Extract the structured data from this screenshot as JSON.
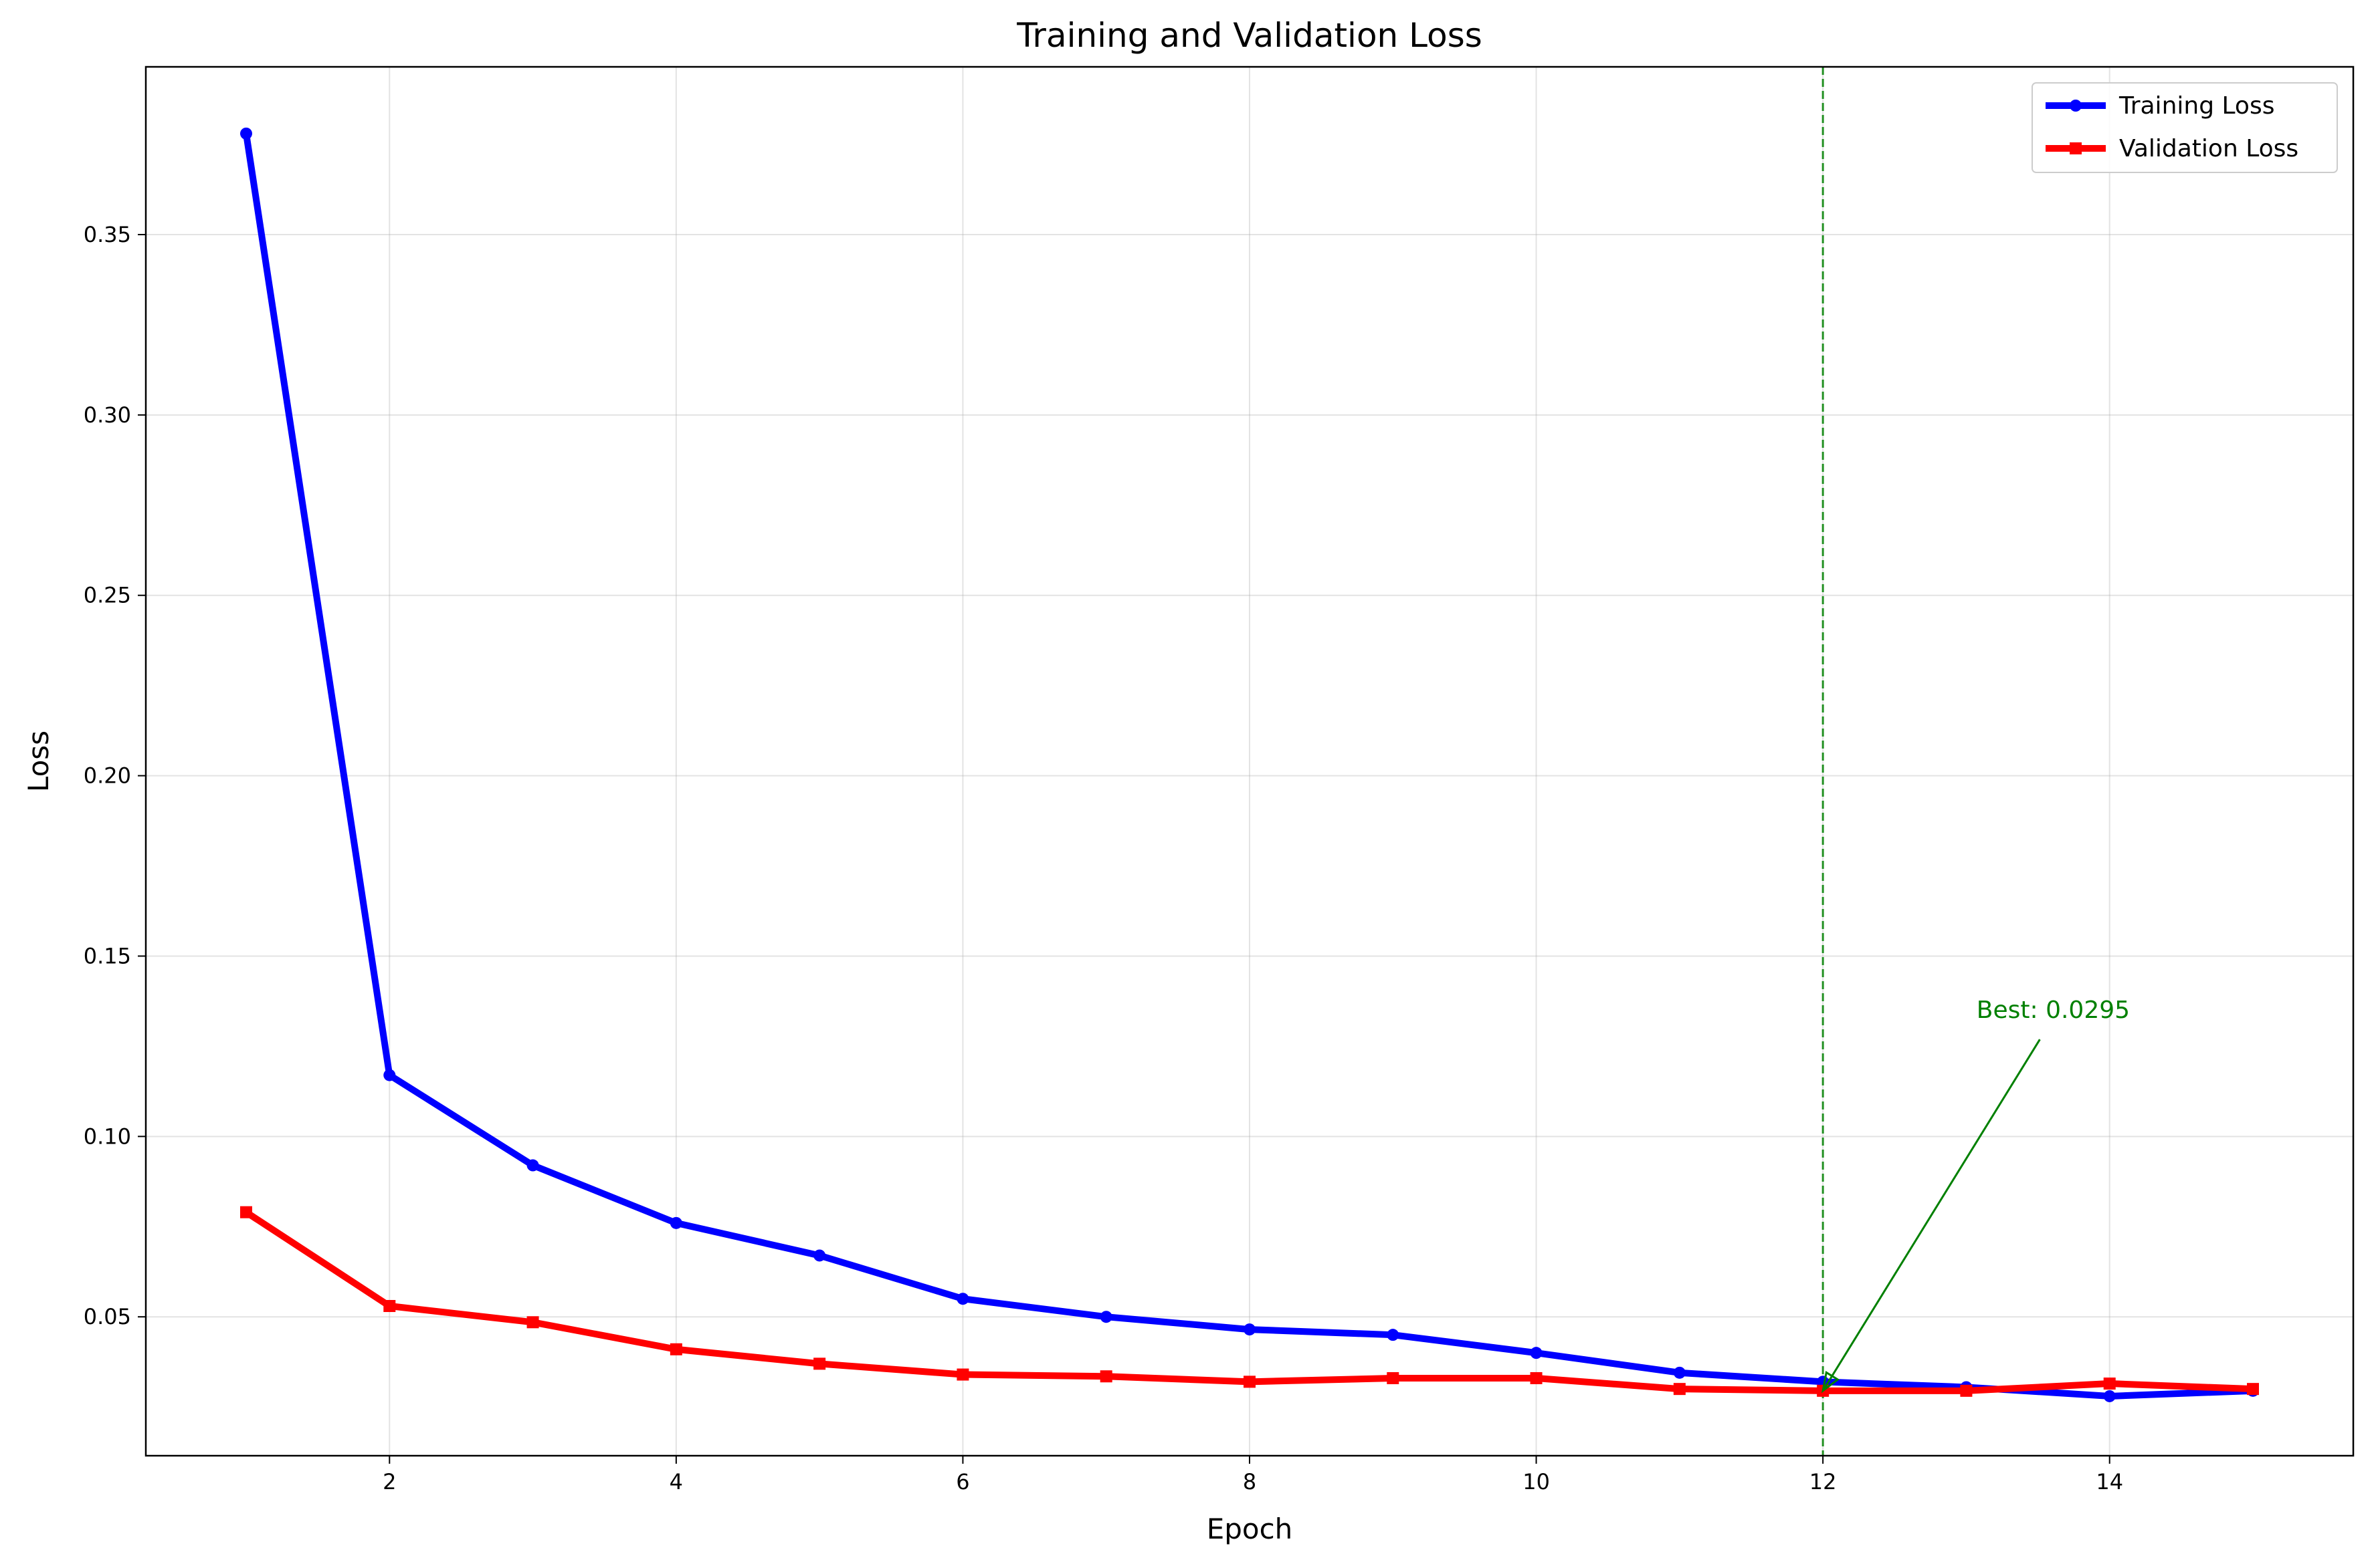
{
  "chart_data": {
    "type": "line",
    "title": "Training and Validation Loss",
    "xlabel": "Epoch",
    "ylabel": "Loss",
    "xlim": [
      0.3,
      15.7
    ],
    "ylim": [
      0.0115,
      0.3965
    ],
    "xticks": [
      2,
      4,
      6,
      8,
      10,
      12,
      14
    ],
    "xtick_labels": [
      "2",
      "4",
      "6",
      "8",
      "10",
      "12",
      "14"
    ],
    "yticks": [
      0.05,
      0.1,
      0.15,
      0.2,
      0.25,
      0.3,
      0.35
    ],
    "ytick_labels": [
      "0.05",
      "0.10",
      "0.15",
      "0.20",
      "0.25",
      "0.30",
      "0.35"
    ],
    "grid": true,
    "legend_position": "top-right",
    "x": [
      1,
      2,
      3,
      4,
      5,
      6,
      7,
      8,
      9,
      10,
      11,
      12,
      13,
      14,
      15
    ],
    "series": [
      {
        "name": "Training Loss",
        "color": "#0000ff",
        "marker": "circle",
        "values": [
          0.378,
          0.117,
          0.092,
          0.076,
          0.067,
          0.055,
          0.05,
          0.0465,
          0.045,
          0.04,
          0.0345,
          0.032,
          0.0305,
          0.028,
          0.0295
        ]
      },
      {
        "name": "Validation Loss",
        "color": "#ff0000",
        "marker": "square",
        "values": [
          0.079,
          0.053,
          0.0485,
          0.041,
          0.037,
          0.034,
          0.0335,
          0.032,
          0.033,
          0.033,
          0.03,
          0.0295,
          0.0295,
          0.0315,
          0.03
        ]
      }
    ],
    "best_marker": {
      "epoch": 12,
      "value": 0.0295,
      "label": "Best: 0.0295",
      "color": "#008000"
    },
    "annotation_text_anchor": {
      "x": 13.0,
      "y": 0.128
    }
  }
}
